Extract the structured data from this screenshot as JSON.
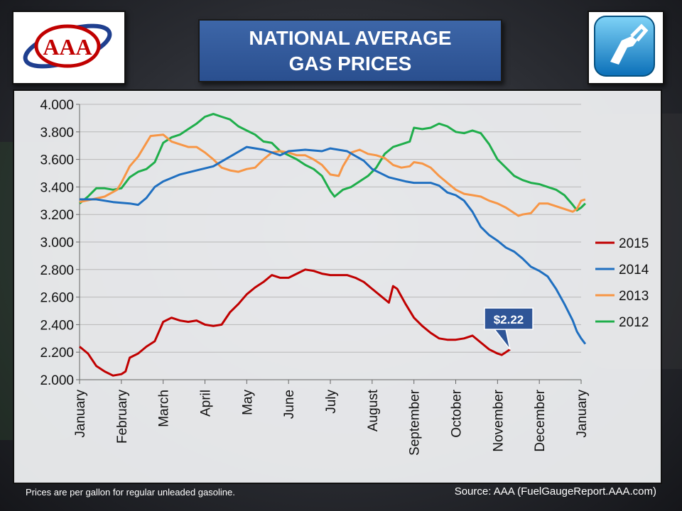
{
  "title_line1": "NATIONAL AVERAGE",
  "title_line2": "GAS PRICES",
  "logo_text": "AAA",
  "footnote": "Prices are per gallon for regular unleaded gasoline.",
  "source": "Source:  AAA (FuelGaugeReport.AAA.com)",
  "callout_label": "$2.22",
  "colors": {
    "2015": "#c00000",
    "2014": "#1f6fc0",
    "2013": "#f79646",
    "2012": "#1fae4b",
    "title_bg": "#2f5597"
  },
  "chart_data": {
    "type": "line",
    "title": "NATIONAL AVERAGE GAS PRICES",
    "ylim": [
      2.0,
      4.0
    ],
    "yticks": [
      "4.000",
      "3.800",
      "3.600",
      "3.400",
      "3.200",
      "3.000",
      "2.800",
      "2.600",
      "2.400",
      "2.200",
      "2.000"
    ],
    "xlim": [
      0,
      12
    ],
    "xticks": [
      "January",
      "February",
      "March",
      "April",
      "May",
      "June",
      "July",
      "August",
      "September",
      "October",
      "November",
      "December",
      "January"
    ],
    "grid": true,
    "legend_position": "right",
    "annotation": {
      "text": "$2.22",
      "x": 10.3,
      "y": 2.22
    },
    "series": [
      {
        "name": "2015",
        "color": "#c00000",
        "points": [
          [
            0,
            2.24
          ],
          [
            0.2,
            2.19
          ],
          [
            0.4,
            2.1
          ],
          [
            0.6,
            2.06
          ],
          [
            0.8,
            2.03
          ],
          [
            1.0,
            2.04
          ],
          [
            1.1,
            2.06
          ],
          [
            1.2,
            2.16
          ],
          [
            1.4,
            2.19
          ],
          [
            1.6,
            2.24
          ],
          [
            1.8,
            2.28
          ],
          [
            2.0,
            2.42
          ],
          [
            2.2,
            2.45
          ],
          [
            2.4,
            2.43
          ],
          [
            2.6,
            2.42
          ],
          [
            2.8,
            2.43
          ],
          [
            3.0,
            2.4
          ],
          [
            3.2,
            2.39
          ],
          [
            3.4,
            2.4
          ],
          [
            3.6,
            2.49
          ],
          [
            3.8,
            2.55
          ],
          [
            4.0,
            2.62
          ],
          [
            4.2,
            2.67
          ],
          [
            4.4,
            2.71
          ],
          [
            4.6,
            2.76
          ],
          [
            4.8,
            2.74
          ],
          [
            5.0,
            2.74
          ],
          [
            5.2,
            2.77
          ],
          [
            5.4,
            2.8
          ],
          [
            5.6,
            2.79
          ],
          [
            5.8,
            2.77
          ],
          [
            6.0,
            2.76
          ],
          [
            6.2,
            2.76
          ],
          [
            6.4,
            2.76
          ],
          [
            6.6,
            2.74
          ],
          [
            6.8,
            2.71
          ],
          [
            7.0,
            2.66
          ],
          [
            7.2,
            2.61
          ],
          [
            7.4,
            2.56
          ],
          [
            7.5,
            2.68
          ],
          [
            7.6,
            2.66
          ],
          [
            7.8,
            2.55
          ],
          [
            8.0,
            2.45
          ],
          [
            8.2,
            2.39
          ],
          [
            8.4,
            2.34
          ],
          [
            8.6,
            2.3
          ],
          [
            8.8,
            2.29
          ],
          [
            9.0,
            2.29
          ],
          [
            9.2,
            2.3
          ],
          [
            9.4,
            2.32
          ],
          [
            9.6,
            2.27
          ],
          [
            9.8,
            2.22
          ],
          [
            10.0,
            2.19
          ],
          [
            10.1,
            2.18
          ],
          [
            10.2,
            2.2
          ],
          [
            10.3,
            2.22
          ]
        ]
      },
      {
        "name": "2014",
        "color": "#1f6fc0",
        "points": [
          [
            0,
            3.31
          ],
          [
            0.4,
            3.31
          ],
          [
            0.8,
            3.29
          ],
          [
            1.2,
            3.28
          ],
          [
            1.4,
            3.27
          ],
          [
            1.6,
            3.32
          ],
          [
            1.8,
            3.4
          ],
          [
            2.0,
            3.44
          ],
          [
            2.4,
            3.49
          ],
          [
            2.8,
            3.52
          ],
          [
            3.2,
            3.55
          ],
          [
            3.6,
            3.62
          ],
          [
            4.0,
            3.69
          ],
          [
            4.4,
            3.67
          ],
          [
            4.8,
            3.63
          ],
          [
            5.0,
            3.66
          ],
          [
            5.4,
            3.67
          ],
          [
            5.8,
            3.66
          ],
          [
            6.0,
            3.68
          ],
          [
            6.4,
            3.66
          ],
          [
            6.8,
            3.59
          ],
          [
            7.0,
            3.53
          ],
          [
            7.4,
            3.47
          ],
          [
            7.8,
            3.44
          ],
          [
            8.0,
            3.43
          ],
          [
            8.4,
            3.43
          ],
          [
            8.6,
            3.41
          ],
          [
            8.8,
            3.36
          ],
          [
            9.0,
            3.34
          ],
          [
            9.2,
            3.3
          ],
          [
            9.4,
            3.22
          ],
          [
            9.6,
            3.11
          ],
          [
            9.8,
            3.05
          ],
          [
            10.0,
            3.01
          ],
          [
            10.2,
            2.96
          ],
          [
            10.4,
            2.93
          ],
          [
            10.6,
            2.88
          ],
          [
            10.8,
            2.82
          ],
          [
            11.0,
            2.79
          ],
          [
            11.2,
            2.75
          ],
          [
            11.4,
            2.66
          ],
          [
            11.6,
            2.55
          ],
          [
            11.8,
            2.43
          ],
          [
            11.9,
            2.35
          ],
          [
            12.0,
            2.3
          ],
          [
            12.1,
            2.26
          ]
        ]
      },
      {
        "name": "2013",
        "color": "#f79646",
        "points": [
          [
            0,
            3.29
          ],
          [
            0.3,
            3.31
          ],
          [
            0.6,
            3.33
          ],
          [
            0.9,
            3.38
          ],
          [
            1.0,
            3.43
          ],
          [
            1.2,
            3.55
          ],
          [
            1.4,
            3.62
          ],
          [
            1.6,
            3.72
          ],
          [
            1.7,
            3.77
          ],
          [
            2.0,
            3.78
          ],
          [
            2.2,
            3.73
          ],
          [
            2.4,
            3.71
          ],
          [
            2.6,
            3.69
          ],
          [
            2.8,
            3.69
          ],
          [
            3.0,
            3.65
          ],
          [
            3.2,
            3.6
          ],
          [
            3.4,
            3.54
          ],
          [
            3.6,
            3.52
          ],
          [
            3.8,
            3.51
          ],
          [
            4.0,
            3.53
          ],
          [
            4.2,
            3.54
          ],
          [
            4.4,
            3.6
          ],
          [
            4.6,
            3.65
          ],
          [
            4.8,
            3.66
          ],
          [
            5.0,
            3.65
          ],
          [
            5.2,
            3.63
          ],
          [
            5.4,
            3.63
          ],
          [
            5.6,
            3.6
          ],
          [
            5.8,
            3.56
          ],
          [
            6.0,
            3.49
          ],
          [
            6.2,
            3.48
          ],
          [
            6.3,
            3.55
          ],
          [
            6.5,
            3.65
          ],
          [
            6.7,
            3.67
          ],
          [
            6.9,
            3.64
          ],
          [
            7.1,
            3.63
          ],
          [
            7.3,
            3.61
          ],
          [
            7.5,
            3.56
          ],
          [
            7.7,
            3.54
          ],
          [
            7.9,
            3.55
          ],
          [
            8.0,
            3.58
          ],
          [
            8.2,
            3.57
          ],
          [
            8.4,
            3.54
          ],
          [
            8.6,
            3.48
          ],
          [
            8.8,
            3.43
          ],
          [
            9.0,
            3.38
          ],
          [
            9.2,
            3.35
          ],
          [
            9.4,
            3.34
          ],
          [
            9.6,
            3.33
          ],
          [
            9.8,
            3.3
          ],
          [
            10.0,
            3.28
          ],
          [
            10.2,
            3.25
          ],
          [
            10.4,
            3.21
          ],
          [
            10.5,
            3.19
          ],
          [
            10.6,
            3.2
          ],
          [
            10.8,
            3.21
          ],
          [
            11.0,
            3.28
          ],
          [
            11.2,
            3.28
          ],
          [
            11.4,
            3.26
          ],
          [
            11.6,
            3.24
          ],
          [
            11.8,
            3.22
          ],
          [
            11.9,
            3.24
          ],
          [
            12.0,
            3.3
          ],
          [
            12.1,
            3.31
          ]
        ]
      },
      {
        "name": "2012",
        "color": "#1fae4b",
        "points": [
          [
            0,
            3.28
          ],
          [
            0.2,
            3.33
          ],
          [
            0.4,
            3.39
          ],
          [
            0.6,
            3.39
          ],
          [
            0.8,
            3.38
          ],
          [
            1.0,
            3.39
          ],
          [
            1.2,
            3.47
          ],
          [
            1.4,
            3.51
          ],
          [
            1.6,
            3.53
          ],
          [
            1.8,
            3.58
          ],
          [
            2.0,
            3.72
          ],
          [
            2.2,
            3.76
          ],
          [
            2.4,
            3.78
          ],
          [
            2.6,
            3.82
          ],
          [
            2.8,
            3.86
          ],
          [
            3.0,
            3.91
          ],
          [
            3.2,
            3.93
          ],
          [
            3.4,
            3.91
          ],
          [
            3.6,
            3.89
          ],
          [
            3.8,
            3.84
          ],
          [
            4.0,
            3.81
          ],
          [
            4.2,
            3.78
          ],
          [
            4.4,
            3.73
          ],
          [
            4.6,
            3.72
          ],
          [
            4.8,
            3.66
          ],
          [
            5.0,
            3.63
          ],
          [
            5.2,
            3.6
          ],
          [
            5.4,
            3.56
          ],
          [
            5.6,
            3.53
          ],
          [
            5.8,
            3.48
          ],
          [
            6.0,
            3.37
          ],
          [
            6.1,
            3.33
          ],
          [
            6.3,
            3.38
          ],
          [
            6.5,
            3.4
          ],
          [
            6.7,
            3.44
          ],
          [
            6.9,
            3.48
          ],
          [
            7.1,
            3.54
          ],
          [
            7.3,
            3.64
          ],
          [
            7.5,
            3.69
          ],
          [
            7.7,
            3.71
          ],
          [
            7.9,
            3.73
          ],
          [
            8.0,
            3.83
          ],
          [
            8.2,
            3.82
          ],
          [
            8.4,
            3.83
          ],
          [
            8.6,
            3.86
          ],
          [
            8.8,
            3.84
          ],
          [
            9.0,
            3.8
          ],
          [
            9.2,
            3.79
          ],
          [
            9.4,
            3.81
          ],
          [
            9.6,
            3.79
          ],
          [
            9.8,
            3.71
          ],
          [
            10.0,
            3.6
          ],
          [
            10.2,
            3.54
          ],
          [
            10.4,
            3.48
          ],
          [
            10.6,
            3.45
          ],
          [
            10.8,
            3.43
          ],
          [
            11.0,
            3.42
          ],
          [
            11.2,
            3.4
          ],
          [
            11.4,
            3.38
          ],
          [
            11.6,
            3.34
          ],
          [
            11.8,
            3.27
          ],
          [
            11.9,
            3.23
          ],
          [
            12.0,
            3.25
          ],
          [
            12.1,
            3.28
          ]
        ]
      }
    ]
  }
}
